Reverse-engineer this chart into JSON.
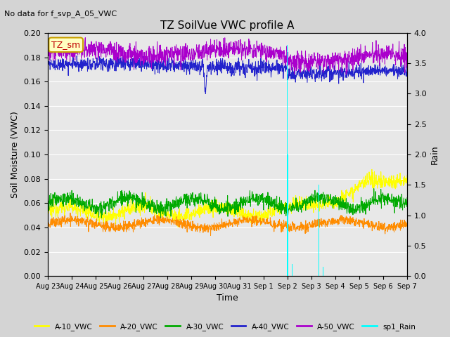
{
  "title": "TZ SoilVue VWC profile A",
  "subtitle": "No data for f_svp_A_05_VWC",
  "xlabel": "Time",
  "ylabel_left": "Soil Moisture (VWC)",
  "ylabel_right": "Rain",
  "ylim_left": [
    0.0,
    0.2
  ],
  "ylim_right": [
    0.0,
    4.0
  ],
  "yticks_left": [
    0.0,
    0.02,
    0.04,
    0.06,
    0.08,
    0.1,
    0.12,
    0.14,
    0.16,
    0.18,
    0.2
  ],
  "yticks_right": [
    0.0,
    0.5,
    1.0,
    1.5,
    2.0,
    2.5,
    3.0,
    3.5,
    4.0
  ],
  "fig_bg_color": "#d4d4d4",
  "plot_bg_color": "#e8e8e8",
  "legend_box_color": "#ffffc0",
  "legend_box_border": "#c8a000",
  "annotation_text": "TZ_sm",
  "annotation_color": "#c00000",
  "series": {
    "A10_VWC": {
      "color": "#ffff00",
      "label": "A-10_VWC"
    },
    "A20_VWC": {
      "color": "#ff8c00",
      "label": "A-20_VWC"
    },
    "A30_VWC": {
      "color": "#00aa00",
      "label": "A-30_VWC"
    },
    "A40_VWC": {
      "color": "#2222cc",
      "label": "A-40_VWC"
    },
    "A50_VWC": {
      "color": "#aa00cc",
      "label": "A-50_VWC"
    },
    "sp1_Rain": {
      "color": "#00ffff",
      "label": "sp1_Rain"
    }
  },
  "n_points": 1440,
  "tick_labels": [
    "Aug 23",
    "Aug 24",
    "Aug 25",
    "Aug 26",
    "Aug 27",
    "Aug 28",
    "Aug 29",
    "Aug 30",
    "Aug 31",
    "Sep 1",
    "Sep 2",
    "Sep 3",
    "Sep 4",
    "Sep 5",
    "Sep 6",
    "Sep 7"
  ],
  "figsize": [
    6.4,
    4.8
  ],
  "dpi": 100
}
